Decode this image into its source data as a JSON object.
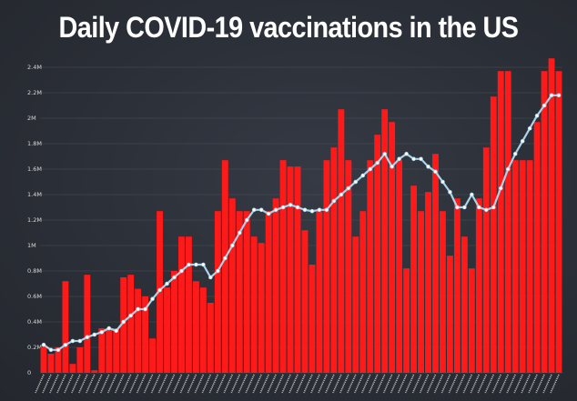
{
  "chart_data": {
    "type": "bar",
    "title": "Daily COVID-19 vaccinations in the US",
    "xlabel": "",
    "ylabel": "",
    "ylim": [
      0,
      2.5
    ],
    "y_tick_labels": [
      "0",
      "0.2M",
      "0.4M",
      "0.6M",
      "0.8M",
      "1M",
      "1.2M",
      "1.4M",
      "1.6M",
      "1.8M",
      "2M",
      "2.2M",
      "2.4M"
    ],
    "y_tick_values": [
      0,
      0.2,
      0.4,
      0.6,
      0.8,
      1.0,
      1.2,
      1.4,
      1.6,
      1.8,
      2.0,
      2.2,
      2.4
    ],
    "grid": true,
    "colors": {
      "bars": "#ff1a1a",
      "line": "#a9d4ea",
      "grid": "#4a505a",
      "background": "#2b3038"
    },
    "series": [
      {
        "kind": "bar",
        "values": [
          0.2,
          0.15,
          0.2,
          0.72,
          0.07,
          0.2,
          0.77,
          0.02,
          0.35,
          0.35,
          0.35,
          0.75,
          0.77,
          0.66,
          0.6,
          0.27,
          1.27,
          0.67,
          0.8,
          1.07,
          1.07,
          0.72,
          0.67,
          0.55,
          1.27,
          1.67,
          1.37,
          1.27,
          1.27,
          1.07,
          1.02,
          1.27,
          1.37,
          1.67,
          1.62,
          1.62,
          1.12,
          0.85,
          1.27,
          1.67,
          1.77,
          2.07,
          1.67,
          1.07,
          1.27,
          1.67,
          1.87,
          2.07,
          1.97,
          1.67,
          0.82,
          1.47,
          1.27,
          1.42,
          1.72,
          1.27,
          0.92,
          1.37,
          1.07,
          0.82,
          1.37,
          1.77,
          2.17,
          2.37,
          2.37,
          1.67,
          1.67,
          1.67,
          1.97,
          2.37,
          2.47,
          2.37
        ]
      },
      {
        "kind": "line",
        "values": [
          0.22,
          0.18,
          0.18,
          0.22,
          0.25,
          0.25,
          0.28,
          0.3,
          0.32,
          0.35,
          0.33,
          0.4,
          0.45,
          0.5,
          0.5,
          0.58,
          0.65,
          0.7,
          0.75,
          0.8,
          0.85,
          0.85,
          0.85,
          0.75,
          0.8,
          0.9,
          1.0,
          1.1,
          1.2,
          1.28,
          1.28,
          1.25,
          1.28,
          1.3,
          1.32,
          1.3,
          1.28,
          1.27,
          1.28,
          1.28,
          1.35,
          1.4,
          1.45,
          1.5,
          1.55,
          1.6,
          1.65,
          1.72,
          1.62,
          1.68,
          1.72,
          1.68,
          1.68,
          1.62,
          1.58,
          1.5,
          1.42,
          1.3,
          1.3,
          1.4,
          1.3,
          1.28,
          1.3,
          1.45,
          1.6,
          1.72,
          1.82,
          1.92,
          2.02,
          2.1,
          2.18,
          2.18
        ]
      }
    ]
  }
}
